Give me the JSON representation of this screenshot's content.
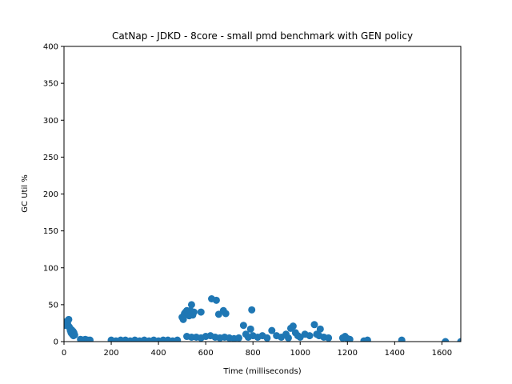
{
  "chart_data": {
    "type": "scatter",
    "title": "CatNap - JDKD - 8core -  small pmd benchmark with GEN policy",
    "xlabel": "Time (milliseconds)",
    "ylabel": "GC Util %",
    "xlim": [
      0,
      1680
    ],
    "ylim": [
      0,
      400
    ],
    "xticks": [
      0,
      200,
      400,
      600,
      800,
      1000,
      1200,
      1400,
      1600
    ],
    "yticks": [
      0,
      50,
      100,
      150,
      200,
      250,
      300,
      350,
      400
    ],
    "grid": false,
    "marker_color": "#1f77b4",
    "series": [
      {
        "x": [
          5,
          10,
          15,
          20,
          22,
          25,
          27,
          30,
          32,
          35,
          38,
          40,
          42,
          45,
          70,
          80,
          90,
          100,
          110,
          200,
          220,
          240,
          260,
          280,
          300,
          320,
          340,
          360,
          380,
          400,
          420,
          440,
          460,
          480,
          500,
          505,
          510,
          515,
          520,
          525,
          530,
          535,
          540,
          545,
          550,
          580,
          625,
          645,
          655,
          675,
          685,
          795,
          520,
          540,
          560,
          580,
          600,
          620,
          640,
          660,
          680,
          700,
          720,
          740,
          760,
          770,
          780,
          790,
          800,
          820,
          840,
          860,
          880,
          900,
          920,
          940,
          950,
          960,
          970,
          980,
          990,
          1000,
          1020,
          1040,
          1060,
          1070,
          1080,
          1085,
          1100,
          1120,
          1180,
          1190,
          1200,
          1210,
          1270,
          1285,
          1430,
          1615,
          1680
        ],
        "y": [
          22,
          27,
          25,
          30,
          20,
          18,
          15,
          12,
          16,
          10,
          14,
          8,
          12,
          9,
          3,
          2,
          3,
          2,
          2,
          2,
          1,
          2,
          2,
          1,
          2,
          1,
          2,
          1,
          2,
          1,
          2,
          2,
          1,
          2,
          33,
          30,
          38,
          40,
          42,
          38,
          35,
          42,
          50,
          36,
          40,
          40,
          58,
          56,
          37,
          42,
          38,
          43,
          7,
          6,
          6,
          5,
          7,
          8,
          6,
          5,
          6,
          5,
          4,
          5,
          22,
          10,
          6,
          17,
          8,
          6,
          8,
          5,
          15,
          8,
          6,
          10,
          5,
          18,
          21,
          12,
          8,
          6,
          10,
          8,
          23,
          10,
          8,
          17,
          6,
          5,
          5,
          7,
          4,
          3,
          1,
          2,
          2,
          0,
          0
        ]
      }
    ]
  }
}
